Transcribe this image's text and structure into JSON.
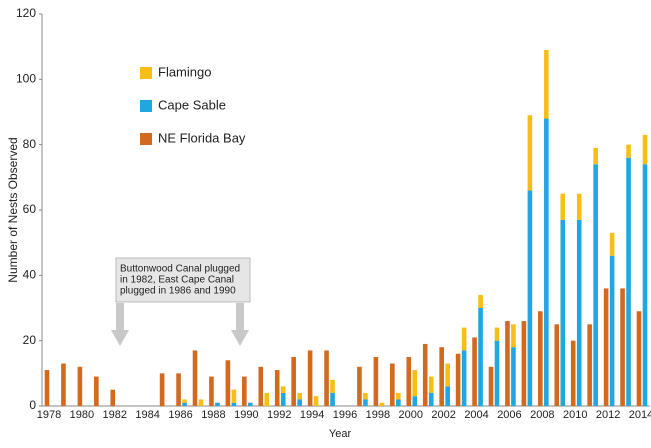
{
  "chart_data": {
    "type": "bar",
    "x_label": "Year",
    "y_label": "Number of Nests Observed",
    "categories": [
      "1978",
      null,
      "1980",
      null,
      "1982",
      null,
      "1984",
      null,
      "1986",
      null,
      "1988",
      null,
      "1990",
      null,
      "1992",
      null,
      "1994",
      null,
      "1996",
      null,
      "1998",
      null,
      "2000",
      null,
      "2002",
      null,
      "2004",
      null,
      "2006",
      null,
      "2008",
      null,
      "2010",
      null,
      "2012",
      null,
      "2014"
    ],
    "series": [
      {
        "name": "NE Florida Bay",
        "color": "#d2691e",
        "stack": "a",
        "values": [
          11,
          13,
          12,
          9,
          5,
          0,
          0,
          10,
          10,
          17,
          9,
          14,
          9,
          12,
          11,
          15,
          17,
          17,
          0,
          12,
          15,
          13,
          15,
          19,
          18,
          16,
          21,
          12,
          26,
          26,
          29,
          25,
          20,
          25,
          36,
          36,
          29
        ]
      },
      {
        "name": "Cape Sable",
        "color": "#1ea7e0",
        "stack": "b",
        "values": [
          0,
          0,
          0,
          0,
          0,
          0,
          0,
          0,
          1,
          0,
          1,
          1,
          1,
          0,
          4,
          2,
          0,
          4,
          0,
          2,
          0,
          2,
          3,
          4,
          6,
          17,
          30,
          20,
          18,
          66,
          88,
          57,
          57,
          74,
          46,
          76,
          74
        ]
      },
      {
        "name": "Flamingo",
        "color": "#f7be16",
        "stack": "b",
        "values": [
          0,
          0,
          0,
          0,
          0,
          0,
          0,
          0,
          1,
          2,
          0,
          4,
          0,
          4,
          2,
          2,
          3,
          4,
          0,
          2,
          1,
          2,
          8,
          5,
          7,
          7,
          4,
          4,
          7,
          23,
          21,
          8,
          8,
          5,
          7,
          4,
          9
        ]
      }
    ],
    "ylim": [
      0,
      120
    ],
    "yticks": [
      0,
      20,
      40,
      60,
      80,
      100,
      120
    ],
    "annotation": [
      "Buttonwood Canal plugged",
      "in 1982, East Cape Canal",
      "plugged in 1986 and 1990"
    ]
  }
}
